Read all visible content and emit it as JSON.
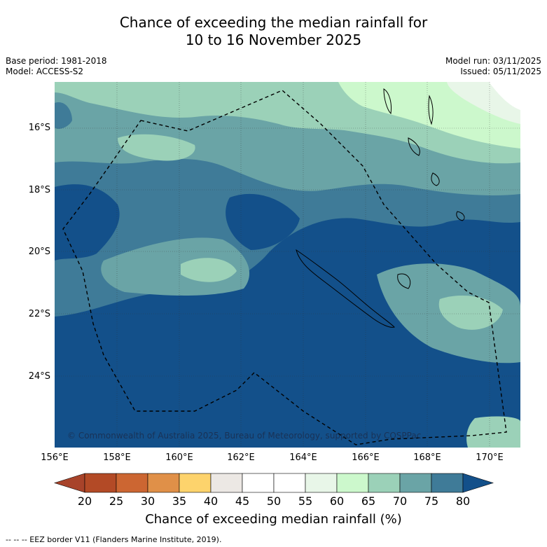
{
  "title": {
    "line1": "Chance of exceeding the median rainfall for",
    "line2": "10 to 16 November 2025"
  },
  "meta": {
    "base_period": "Base period: 1981-2018",
    "model": "Model: ACCESS-S2",
    "model_run": "Model run: 03/11/2025",
    "issued": "Issued: 05/11/2025"
  },
  "axes": {
    "lat_labels": [
      "16°S",
      "18°S",
      "20°S",
      "22°S",
      "24°S"
    ],
    "lon_labels": [
      "156°E",
      "158°E",
      "160°E",
      "162°E",
      "164°E",
      "166°E",
      "168°E",
      "170°E"
    ]
  },
  "copyright": "© Commonwealth of Australia 2025, Bureau of Meteorology, supported by COSPPac",
  "colorbar": {
    "ticks": [
      "20",
      "25",
      "30",
      "35",
      "40",
      "45",
      "50",
      "55",
      "60",
      "65",
      "70",
      "75",
      "80"
    ],
    "colors": [
      "#a8432a",
      "#b34a26",
      "#cc6632",
      "#e09048",
      "#fdd36c",
      "#ece8e4",
      "#ffffff",
      "#ffffff",
      "#e8f6e8",
      "#ccf8cc",
      "#9bd1b8",
      "#6aa4a6",
      "#3f7b98",
      "#13508a"
    ],
    "title": "Chance of exceeding median rainfall (%)"
  },
  "footer": "--  --  -- EEZ border V11 (Flanders Marine Institute, 2019)."
}
